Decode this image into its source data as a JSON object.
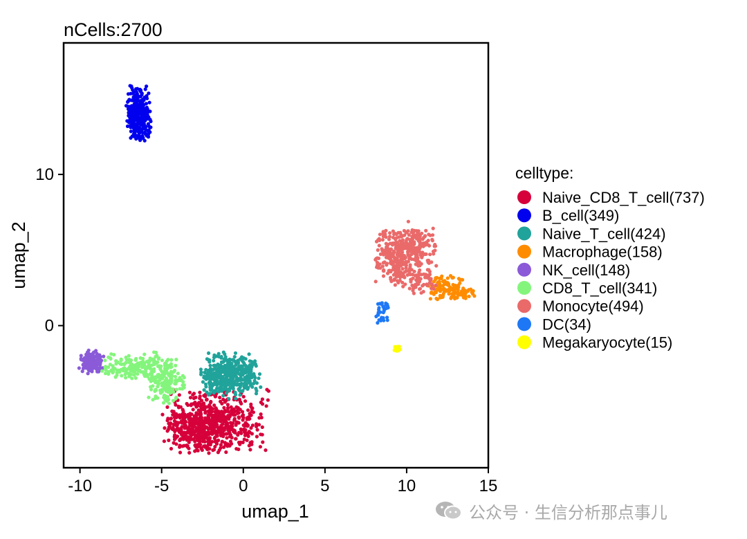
{
  "chart_data": {
    "type": "scatter",
    "title": "nCells:2700",
    "xlabel": "umap_1",
    "ylabel": "umap_2",
    "xlim": [
      -11,
      15
    ],
    "ylim": [
      -9.4,
      18.7
    ],
    "xticks": [
      -10,
      -5,
      0,
      5,
      10,
      15
    ],
    "yticks": [
      0,
      10
    ],
    "xtick_labels": [
      "-10",
      "-5",
      "0",
      "5",
      "10",
      "15"
    ],
    "ytick_labels": [
      "0",
      "10"
    ],
    "grid": false,
    "legend_title": "celltype:",
    "legend_position": "right",
    "series": [
      {
        "name": "Naive_CD8_T_cell(737)",
        "color": "#D6003A",
        "count": 737,
        "blobs": [
          {
            "cx": -1.7,
            "cy": -6.3,
            "sx": 1.5,
            "sy": 1.0,
            "w": 0.7
          },
          {
            "cx": -2.8,
            "cy": -7.0,
            "sx": 0.9,
            "sy": 0.7,
            "w": 0.3
          }
        ]
      },
      {
        "name": "B_cell(349)",
        "color": "#0000EE",
        "count": 349,
        "blobs": [
          {
            "cx": -6.4,
            "cy": 14.0,
            "sx": 0.35,
            "sy": 0.85,
            "w": 1
          }
        ]
      },
      {
        "name": "Naive_T_cell(424)",
        "color": "#20A39A",
        "count": 424,
        "blobs": [
          {
            "cx": -0.8,
            "cy": -3.3,
            "sx": 0.85,
            "sy": 0.7,
            "w": 1
          }
        ]
      },
      {
        "name": "Macrophage(158)",
        "color": "#FF8C00",
        "count": 158,
        "blobs": [
          {
            "cx": 12.4,
            "cy": 2.5,
            "sx": 0.55,
            "sy": 0.4,
            "w": 0.7
          },
          {
            "cx": 13.4,
            "cy": 2.1,
            "sx": 0.35,
            "sy": 0.2,
            "w": 0.3
          }
        ]
      },
      {
        "name": "NK_cell(148)",
        "color": "#8A5AD8",
        "count": 148,
        "blobs": [
          {
            "cx": -9.3,
            "cy": -2.4,
            "sx": 0.35,
            "sy": 0.35,
            "w": 1
          }
        ]
      },
      {
        "name": "CD8_T_cell(341)",
        "color": "#84F57C",
        "count": 341,
        "blobs": [
          {
            "cx": -6.3,
            "cy": -2.7,
            "sx": 1.1,
            "sy": 0.45,
            "w": 0.6
          },
          {
            "cx": -4.7,
            "cy": -3.9,
            "sx": 0.5,
            "sy": 0.6,
            "w": 0.4
          }
        ]
      },
      {
        "name": "Monocyte(494)",
        "color": "#EA6A6A",
        "count": 494,
        "blobs": [
          {
            "cx": 9.3,
            "cy": 4.6,
            "sx": 0.55,
            "sy": 0.9,
            "w": 0.5
          },
          {
            "cx": 10.6,
            "cy": 5.2,
            "sx": 0.6,
            "sy": 0.8,
            "w": 0.35
          },
          {
            "cx": 10.6,
            "cy": 3.0,
            "sx": 0.6,
            "sy": 0.4,
            "w": 0.15
          }
        ]
      },
      {
        "name": "DC(34)",
        "color": "#1E78F5",
        "count": 34,
        "blobs": [
          {
            "cx": 8.5,
            "cy": 0.9,
            "sx": 0.18,
            "sy": 0.35,
            "w": 1
          }
        ]
      },
      {
        "name": "Megakaryocyte(15)",
        "color": "#FFFF00",
        "count": 15,
        "blobs": [
          {
            "cx": 9.4,
            "cy": -1.6,
            "sx": 0.12,
            "sy": 0.1,
            "w": 1
          }
        ]
      }
    ]
  },
  "watermark": {
    "icon": "wechat-icon",
    "text": "公众号 · 生信分析那点事儿"
  }
}
